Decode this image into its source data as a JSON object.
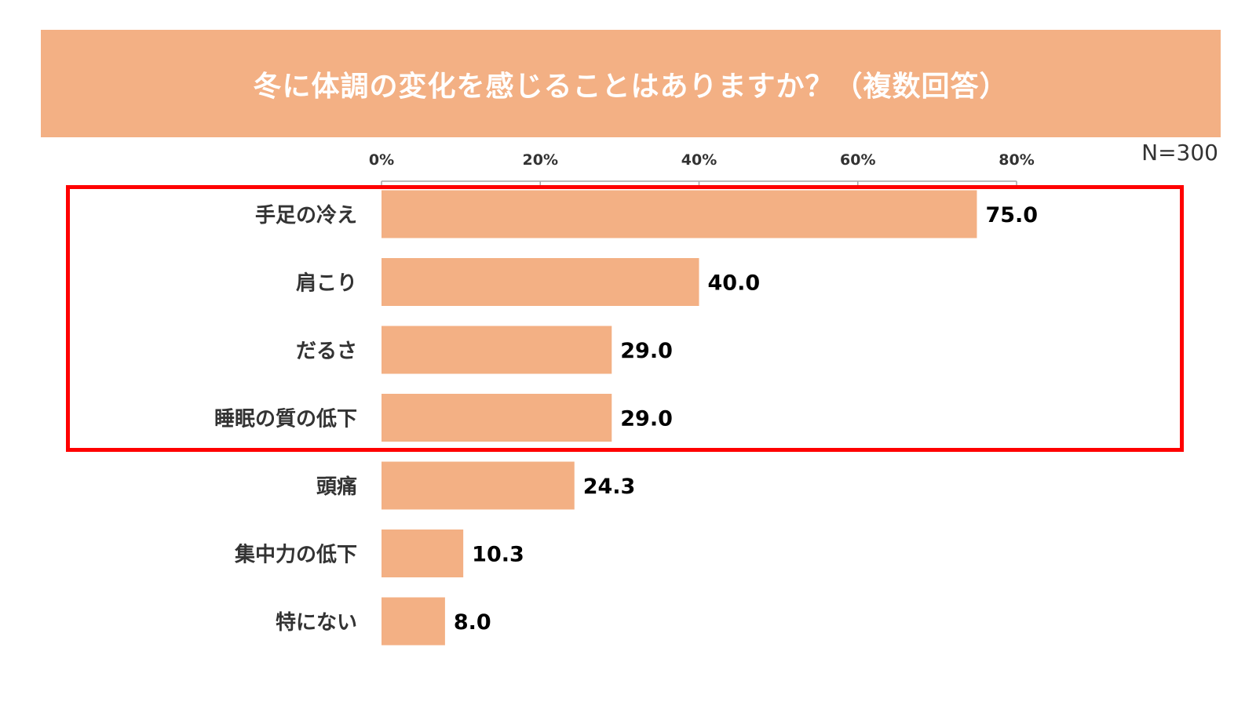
{
  "title": "冬に体調の変化を感じることはありますか？（複数回答）",
  "sample_size": "N=300",
  "colors": {
    "bar": "#F3B084",
    "banner": "#F3B084",
    "highlight": "#FF0000",
    "label_text": "#333333",
    "value_text": "#000000",
    "axis": "#A6A6A6"
  },
  "chart_data": {
    "type": "bar",
    "orientation": "horizontal",
    "title": "冬に体調の変化を感じることはありますか？（複数回答）",
    "xlabel": "",
    "ylabel": "",
    "xlim": [
      0,
      80
    ],
    "ticks": [
      0,
      20,
      40,
      60,
      80
    ],
    "tick_labels": [
      "0%",
      "20%",
      "40%",
      "60%",
      "80%"
    ],
    "categories": [
      "手足の冷え",
      "肩こり",
      "だるさ",
      "睡眠の質の低下",
      "頭痛",
      "集中力の低下",
      "特にない"
    ],
    "values": [
      75.0,
      40.0,
      29.0,
      29.0,
      24.3,
      10.3,
      8.0
    ],
    "value_labels": [
      "75.0",
      "40.0",
      "29.0",
      "29.0",
      "24.3",
      "10.3",
      "8.0"
    ],
    "highlighted_categories": [
      "手足の冷え",
      "肩こり",
      "だるさ",
      "睡眠の質の低下"
    ],
    "grid": false,
    "legend": "none"
  }
}
